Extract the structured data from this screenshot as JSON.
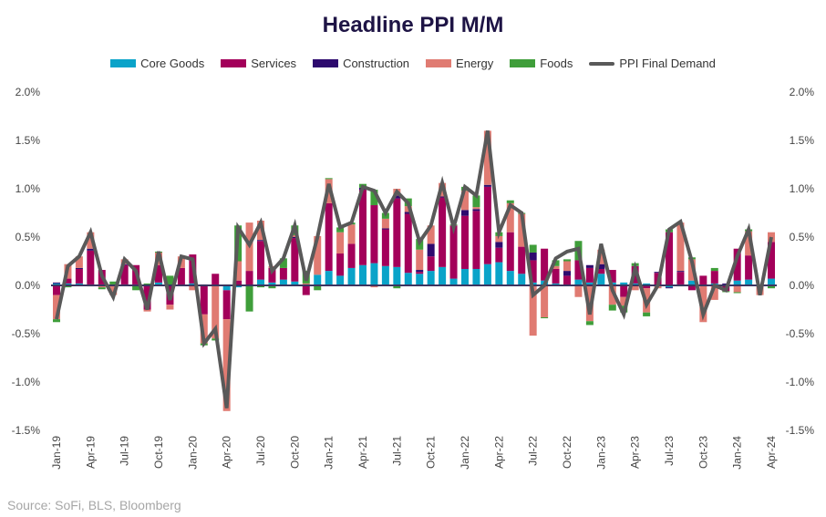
{
  "chart_data": {
    "type": "bar",
    "title": "Headline PPI M/M",
    "xlabel": "",
    "ylabel": "",
    "ylim": [
      -1.5,
      2.0
    ],
    "yticks": [
      "-1.5%",
      "-1.0%",
      "-0.5%",
      "0.0%",
      "0.5%",
      "1.0%",
      "1.5%",
      "2.0%"
    ],
    "ytick_values": [
      -1.5,
      -1.0,
      -0.5,
      0.0,
      0.5,
      1.0,
      1.5,
      2.0
    ],
    "x_labels": [
      "Jan-19",
      "Apr-19",
      "Jul-19",
      "Oct-19",
      "Jan-20",
      "Apr-20",
      "Jul-20",
      "Oct-20",
      "Jan-21",
      "Apr-21",
      "Jul-21",
      "Oct-21",
      "Jan-22",
      "Apr-22",
      "Jul-22",
      "Oct-22",
      "Jan-23",
      "Apr-23",
      "Jul-23",
      "Oct-23",
      "Jan-24",
      "Apr-24"
    ],
    "x_label_step_months": 3,
    "n_months": 64,
    "legend_position": "top-center",
    "series": [
      {
        "name": "Core Goods",
        "type": "stacked-bar",
        "color": "#0aa3c9",
        "values": [
          0.02,
          0.02,
          0.02,
          0.01,
          0.01,
          0.01,
          0.01,
          0.01,
          0,
          0.03,
          0,
          0,
          0.02,
          0,
          0,
          -0.05,
          -0.02,
          0,
          0.06,
          0.03,
          0.06,
          0.04,
          0,
          0.11,
          0.15,
          0.1,
          0.18,
          0.21,
          0.23,
          0.2,
          0.19,
          0.13,
          0.12,
          0.15,
          0.19,
          0.07,
          0.17,
          0.17,
          0.22,
          0.24,
          0.15,
          0.12,
          0.03,
          0.05,
          0.02,
          0,
          0.06,
          0.03,
          0.12,
          0.03,
          0.03,
          0.02,
          0.02,
          0,
          -0.02,
          0.01,
          0.05,
          0,
          0.02,
          0.01,
          0.05,
          0.06,
          0,
          0.07
        ]
      },
      {
        "name": "Services",
        "type": "stacked-bar",
        "color": "#a3005a",
        "values": [
          -0.1,
          0.05,
          0.15,
          0.35,
          0.15,
          0,
          0.2,
          0.2,
          -0.25,
          0.18,
          -0.2,
          0.18,
          0.3,
          -0.3,
          0.12,
          -0.3,
          0.05,
          0.15,
          0.4,
          0.15,
          0.12,
          0.45,
          -0.1,
          0,
          0.7,
          0.23,
          0.25,
          0.78,
          0.6,
          0.38,
          0.71,
          0.61,
          0.02,
          0.15,
          0.72,
          0.55,
          0.55,
          0.6,
          0.8,
          0.15,
          0.4,
          0.28,
          0.23,
          0.33,
          0.15,
          0.1,
          0.2,
          0.15,
          0.05,
          0.13,
          -0.12,
          0.18,
          -0.03,
          0.13,
          0.55,
          0.13,
          -0.05,
          0.1,
          0.13,
          -0.06,
          0.33,
          0.25,
          0,
          0.38
        ]
      },
      {
        "name": "Construction",
        "type": "stacked-bar",
        "color": "#2d0a6e",
        "values": [
          0.01,
          0,
          0.01,
          0.02,
          0,
          0,
          0.01,
          0,
          0,
          0,
          0,
          0,
          0,
          0.01,
          0,
          0,
          0,
          0,
          0.01,
          0,
          0,
          0.01,
          0,
          0,
          0,
          0,
          0,
          0.02,
          0,
          0.01,
          0.03,
          0.02,
          0.02,
          0.13,
          0.01,
          0,
          0.06,
          0.02,
          0.02,
          0.06,
          0,
          0,
          0.08,
          0,
          0,
          0.05,
          0,
          0.03,
          0.05,
          0,
          0,
          0,
          0,
          0.01,
          -0.01,
          0.01,
          0,
          0,
          0,
          0.01,
          0,
          0,
          0,
          0
        ]
      },
      {
        "name": "Energy",
        "type": "stacked-bar",
        "color": "#e07b72",
        "values": [
          -0.25,
          0.15,
          0.12,
          0.17,
          -0.02,
          -0.1,
          0.05,
          0,
          -0.02,
          0.13,
          -0.05,
          0.12,
          -0.05,
          -0.3,
          -0.55,
          -0.95,
          0.2,
          0.5,
          0.2,
          0.02,
          0,
          0.02,
          0.02,
          0.4,
          0.25,
          0.22,
          0.2,
          0,
          -0.02,
          0.1,
          0.07,
          0.06,
          0.21,
          0.19,
          0.14,
          0,
          0.2,
          0.02,
          0.56,
          0.06,
          0.3,
          0.34,
          -0.52,
          -0.33,
          0.03,
          0.1,
          -0.12,
          -0.37,
          0.15,
          -0.2,
          -0.09,
          -0.05,
          -0.25,
          -0.03,
          0,
          0.5,
          0.22,
          -0.38,
          -0.15,
          0,
          -0.07,
          0.25,
          -0.1,
          0.1
        ]
      },
      {
        "name": "Foods",
        "type": "stacked-bar",
        "color": "#3f9e3a",
        "values": [
          -0.03,
          -0.02,
          0,
          -0.01,
          -0.02,
          0.03,
          0,
          -0.05,
          0.02,
          0.01,
          0.1,
          0,
          0,
          -0.02,
          -0.02,
          0.01,
          0.37,
          -0.27,
          -0.02,
          -0.03,
          0.1,
          0.1,
          0.13,
          -0.05,
          0.01,
          0.05,
          0.02,
          0.04,
          0.16,
          0.06,
          -0.03,
          0.08,
          0.11,
          0,
          0,
          0.01,
          0.04,
          0.12,
          0,
          0.04,
          0.03,
          0.01,
          0.08,
          -0.01,
          0.06,
          0.02,
          0.2,
          -0.04,
          0,
          -0.06,
          -0.07,
          0.03,
          -0.04,
          0,
          0.03,
          -0.01,
          0.02,
          0,
          0.03,
          -0.01,
          -0.01,
          0.02,
          0,
          -0.03
        ]
      },
      {
        "name": "PPI Final Demand",
        "type": "line",
        "color": "#595959",
        "values": [
          -0.35,
          0.2,
          0.3,
          0.55,
          0.1,
          -0.12,
          0.27,
          0.15,
          -0.25,
          0.35,
          -0.15,
          0.3,
          0.27,
          -0.6,
          -0.45,
          -1.27,
          0.6,
          0.42,
          0.65,
          0.15,
          0.28,
          0.62,
          0.05,
          0.5,
          1.05,
          0.6,
          0.65,
          1.02,
          0.98,
          0.75,
          0.97,
          0.85,
          0.45,
          0.62,
          1.06,
          0.6,
          1.02,
          0.93,
          1.6,
          0.55,
          0.83,
          0.75,
          -0.1,
          0.0,
          0.28,
          0.35,
          0.38,
          -0.3,
          0.43,
          -0.05,
          -0.3,
          0.18,
          -0.2,
          0.0,
          0.58,
          0.66,
          0.25,
          -0.3,
          0.0,
          -0.05,
          0.3,
          0.58,
          -0.1,
          0.5
        ]
      }
    ]
  },
  "source": "Source: SoFi, BLS, Bloomberg"
}
